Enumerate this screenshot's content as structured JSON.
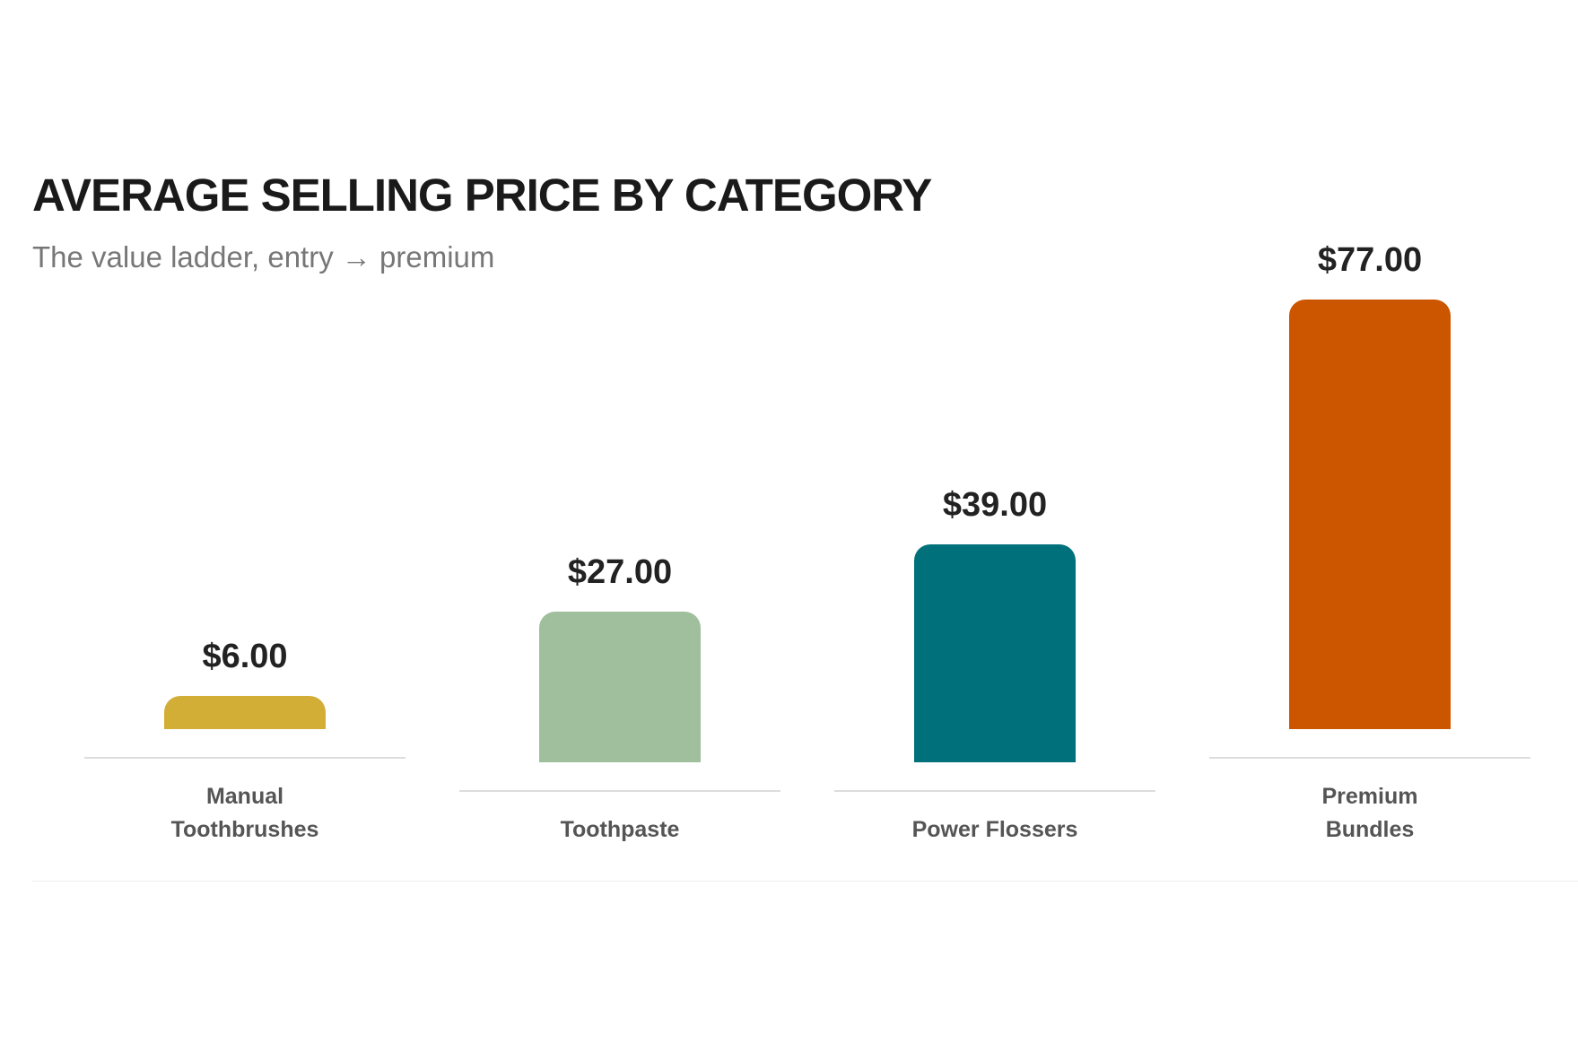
{
  "chart_data": {
    "type": "bar",
    "title": "AVERAGE SELLING PRICE BY CATEGORY",
    "subtitle": "The value ladder, entry → premium",
    "categories": [
      "Manual Toothbrushes",
      "Toothpaste",
      "Power Flossers",
      "Premium Bundles"
    ],
    "values": [
      6,
      27,
      39,
      77
    ],
    "value_labels": [
      "$6.00",
      "$27.00",
      "$39.00",
      "$77.00"
    ],
    "colors": [
      "#d3ae36",
      "#9fbf9d",
      "#00707a",
      "#cc5500"
    ]
  }
}
